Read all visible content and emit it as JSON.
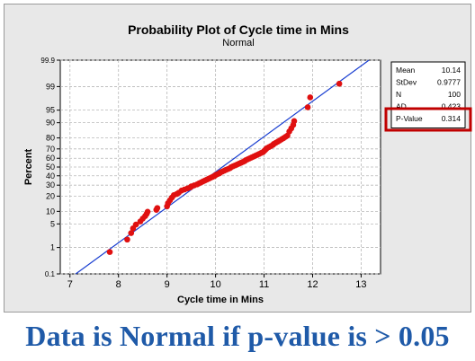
{
  "chart_data": {
    "type": "scatter",
    "title": "Probability Plot of Cycle time in Mins",
    "subtitle": "Normal",
    "xlabel": "Cycle time in Mins",
    "ylabel": "Percent",
    "xlim": [
      6.8,
      13.4
    ],
    "x_ticks": [
      7,
      8,
      9,
      10,
      11,
      12,
      13
    ],
    "y_scale": "normal-probability",
    "y_ticks": [
      0.1,
      1,
      5,
      10,
      20,
      30,
      40,
      50,
      60,
      70,
      80,
      90,
      95,
      99,
      99.9
    ],
    "y_tick_labels": [
      "0.1",
      "1",
      "5",
      "10",
      "20",
      "30",
      "40",
      "50",
      "60",
      "70",
      "80",
      "90",
      "95",
      "99",
      "99.9"
    ],
    "fit_line": {
      "mean": 10.14,
      "stdev": 0.9777,
      "color": "#1a3fd1"
    },
    "point_color": "#e01010",
    "grid": true,
    "series": [
      {
        "x": [
          7.82,
          8.18,
          8.26,
          8.3,
          8.36,
          8.45,
          8.5,
          8.55,
          8.58,
          8.6,
          8.78,
          8.8,
          9.0,
          9.02,
          9.06,
          9.1,
          9.14,
          9.2,
          9.24,
          9.3,
          9.36,
          9.42,
          9.48,
          9.5,
          9.56,
          9.62,
          9.66,
          9.7,
          9.74,
          9.78,
          9.82,
          9.86,
          9.9,
          9.94,
          9.98,
          10.0,
          10.04,
          10.08,
          10.1,
          10.14,
          10.18,
          10.22,
          10.26,
          10.3,
          10.32,
          10.36,
          10.4,
          10.44,
          10.48,
          10.52,
          10.56,
          10.6,
          10.62,
          10.66,
          10.7,
          10.74,
          10.78,
          10.82,
          10.86,
          10.9,
          10.94,
          10.98,
          11.0,
          11.02,
          11.04,
          11.06,
          11.1,
          11.14,
          11.18,
          11.2,
          11.24,
          11.28,
          11.32,
          11.36,
          11.4,
          11.44,
          11.48,
          11.52,
          11.56,
          11.6,
          11.62,
          11.9,
          11.95,
          12.55
        ],
        "y": [
          0.7,
          1.8,
          2.8,
          3.8,
          4.8,
          5.8,
          6.8,
          7.8,
          8.8,
          9.8,
          10.8,
          11.8,
          12.8,
          14.8,
          16.8,
          18.8,
          20.8,
          21.8,
          22.8,
          24.8,
          25.8,
          26.8,
          27.8,
          28.8,
          29.8,
          30.8,
          31.8,
          32.8,
          33.8,
          34.8,
          35.8,
          36.8,
          37.8,
          38.8,
          39.8,
          40.8,
          41.8,
          42.8,
          43.8,
          44.8,
          45.8,
          46.8,
          47.8,
          48.8,
          49.8,
          50.8,
          51.8,
          52.8,
          53.8,
          54.8,
          55.8,
          56.8,
          57.8,
          58.8,
          59.8,
          60.8,
          61.8,
          62.8,
          63.8,
          64.8,
          65.8,
          66.8,
          67.8,
          68.8,
          69.8,
          70.8,
          71.8,
          72.8,
          73.8,
          74.8,
          75.8,
          76.8,
          77.8,
          78.8,
          79.8,
          80.8,
          81.8,
          84.8,
          86.8,
          88.8,
          90.8,
          95.8,
          97.8,
          99.2
        ]
      }
    ]
  },
  "stats_box": {
    "rows": [
      {
        "label": "Mean",
        "value": "10.14"
      },
      {
        "label": "StDev",
        "value": "0.9777"
      },
      {
        "label": "N",
        "value": "100"
      },
      {
        "label": "AD",
        "value": "0.423"
      },
      {
        "label": "P-Value",
        "value": "0.314"
      }
    ],
    "highlight_color": "#c00000"
  },
  "caption": "Data is Normal if p-value is > 0.05"
}
